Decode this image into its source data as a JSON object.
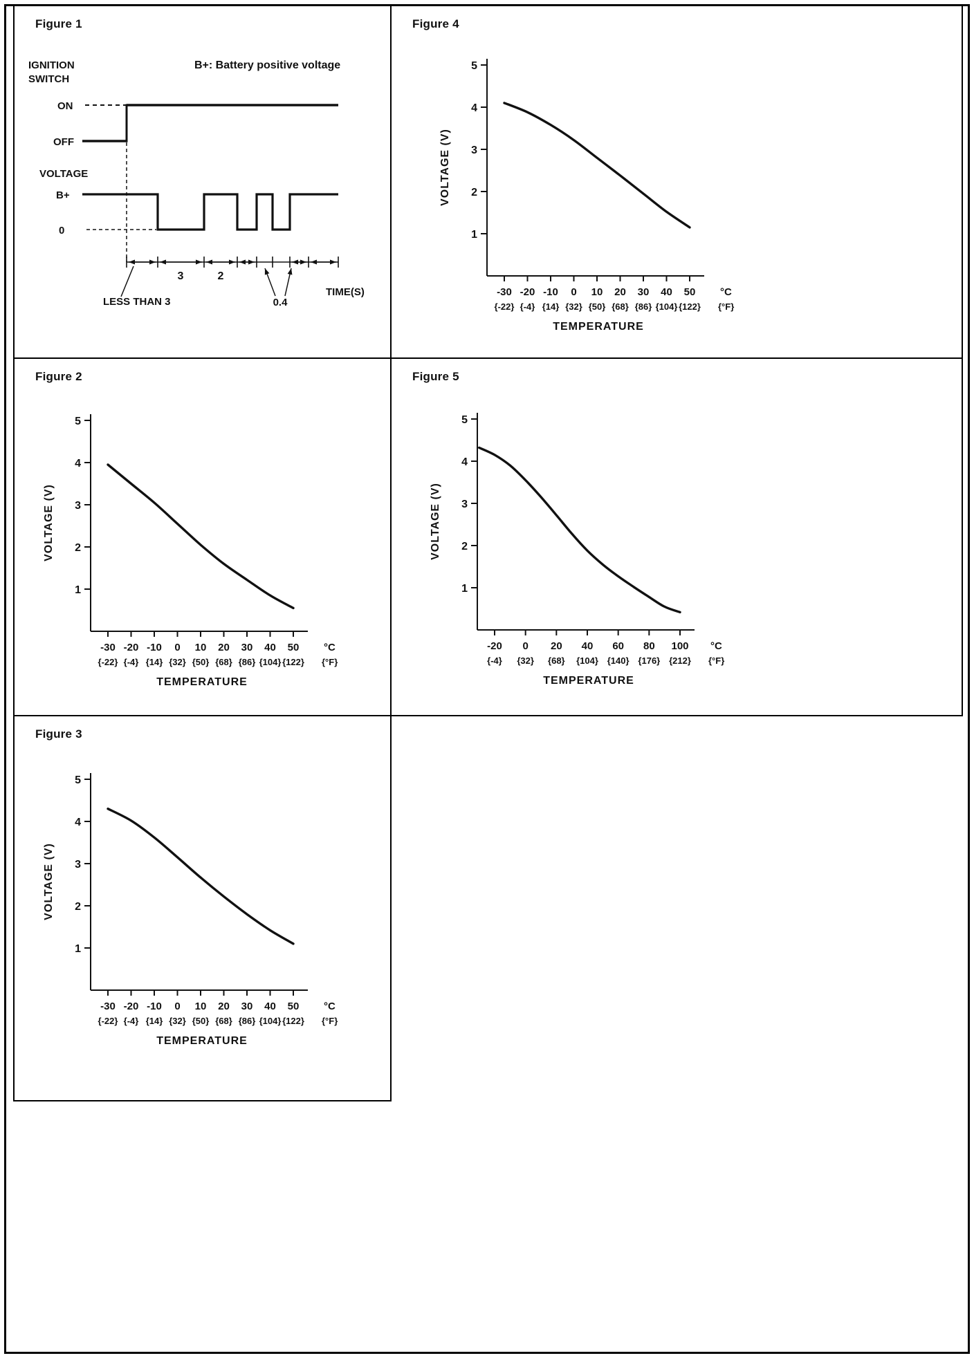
{
  "chart_data": [
    {
      "id": "figure1",
      "type": "timing",
      "title": "Figure 1",
      "note": "B+: Battery positive voltage",
      "labels": {
        "ignition_line1": "IGNITION",
        "ignition_line2": "SWITCH",
        "on": "ON",
        "off": "OFF",
        "voltage": "VOLTAGE",
        "b_plus": "B+",
        "zero": "0",
        "less_than": "LESS THAN 3",
        "seg3": "3",
        "seg2": "2",
        "seg04": "0.4",
        "time": "TIME(S)"
      },
      "signals": [
        {
          "name": "IGNITION SWITCH",
          "levels": [
            "ON",
            "OFF"
          ],
          "behavior": "OFF, then steps up to ON"
        },
        {
          "name": "VOLTAGE",
          "levels": [
            "B+",
            "0"
          ],
          "behavior": "B+ for less than 3 s after ignition ON, 0 for 3 s, B+ for 2 s, then alternating 0.4 s pulses, then B+"
        }
      ],
      "time_segments": [
        "LESS THAN 3",
        "3",
        "2",
        "0.4"
      ],
      "xlabel": "TIME(S)"
    },
    {
      "id": "figure2",
      "type": "line",
      "title": "Figure 2",
      "xlabel": "TEMPERATURE",
      "ylabel": "VOLTAGE (V)",
      "x_unit": "°C",
      "x_unit_secondary": "{°F}",
      "x_tick_values": [
        -30,
        -20,
        -10,
        0,
        10,
        20,
        30,
        40,
        50
      ],
      "x_ticks_c": [
        "-30",
        "-20",
        "-10",
        "0",
        "10",
        "20",
        "30",
        "40",
        "50"
      ],
      "x_ticks_f": [
        "{-22}",
        "{-4}",
        "{14}",
        "{32}",
        "{50}",
        "{68}",
        "{86}",
        "{104}",
        "{122}"
      ],
      "y_ticks": [
        "5",
        "4",
        "3",
        "2",
        "1"
      ],
      "ylim": [
        0,
        5
      ],
      "x": [
        -30,
        -20,
        -10,
        0,
        10,
        20,
        30,
        40,
        50
      ],
      "y": [
        3.95,
        3.5,
        3.05,
        2.55,
        2.05,
        1.6,
        1.22,
        0.85,
        0.55
      ]
    },
    {
      "id": "figure3",
      "type": "line",
      "title": "Figure 3",
      "xlabel": "TEMPERATURE",
      "ylabel": "VOLTAGE (V)",
      "x_unit": "°C",
      "x_unit_secondary": "{°F}",
      "x_tick_values": [
        -30,
        -20,
        -10,
        0,
        10,
        20,
        30,
        40,
        50
      ],
      "x_ticks_c": [
        "-30",
        "-20",
        "-10",
        "0",
        "10",
        "20",
        "30",
        "40",
        "50"
      ],
      "x_ticks_f": [
        "{-22}",
        "{-4}",
        "{14}",
        "{32}",
        "{50}",
        "{68}",
        "{86}",
        "{104}",
        "{122}"
      ],
      "y_ticks": [
        "5",
        "4",
        "3",
        "2",
        "1"
      ],
      "ylim": [
        0,
        5
      ],
      "x": [
        -30,
        -20,
        -10,
        0,
        10,
        20,
        30,
        40,
        50
      ],
      "y": [
        4.3,
        4.02,
        3.62,
        3.15,
        2.67,
        2.22,
        1.8,
        1.42,
        1.1
      ]
    },
    {
      "id": "figure4",
      "type": "line",
      "title": "Figure 4",
      "xlabel": "TEMPERATURE",
      "ylabel": "VOLTAGE (V)",
      "x_unit": "°C",
      "x_unit_secondary": "{°F}",
      "x_tick_values": [
        -30,
        -20,
        -10,
        0,
        10,
        20,
        30,
        40,
        50
      ],
      "x_ticks_c": [
        "-30",
        "-20",
        "-10",
        "0",
        "10",
        "20",
        "30",
        "40",
        "50"
      ],
      "x_ticks_f": [
        "{-22}",
        "{-4}",
        "{14}",
        "{32}",
        "{50}",
        "{68}",
        "{86}",
        "{104}",
        "{122}"
      ],
      "y_ticks": [
        "5",
        "4",
        "3",
        "2",
        "1"
      ],
      "ylim": [
        0,
        5
      ],
      "x": [
        -30,
        -20,
        -10,
        0,
        10,
        20,
        30,
        40,
        50
      ],
      "y": [
        4.1,
        3.88,
        3.58,
        3.22,
        2.8,
        2.38,
        1.95,
        1.52,
        1.15
      ]
    },
    {
      "id": "figure5",
      "type": "line",
      "title": "Figure 5",
      "xlabel": "TEMPERATURE",
      "ylabel": "VOLTAGE (V)",
      "x_unit": "°C",
      "x_unit_secondary": "{°F}",
      "x_tick_values": [
        -20,
        0,
        20,
        40,
        60,
        80,
        100
      ],
      "x_ticks_c": [
        "-20",
        "0",
        "20",
        "40",
        "60",
        "80",
        "100"
      ],
      "x_ticks_f": [
        "{-4}",
        "{32}",
        "{68}",
        "{104}",
        "{140}",
        "{176}",
        "{212}"
      ],
      "y_ticks": [
        "5",
        "4",
        "3",
        "2",
        "1"
      ],
      "ylim": [
        0,
        5
      ],
      "x": [
        -30,
        -20,
        -10,
        0,
        10,
        20,
        30,
        40,
        50,
        60,
        70,
        80,
        90,
        100
      ],
      "y": [
        4.32,
        4.15,
        3.9,
        3.55,
        3.15,
        2.72,
        2.28,
        1.88,
        1.55,
        1.27,
        1.02,
        0.78,
        0.55,
        0.42
      ]
    }
  ]
}
